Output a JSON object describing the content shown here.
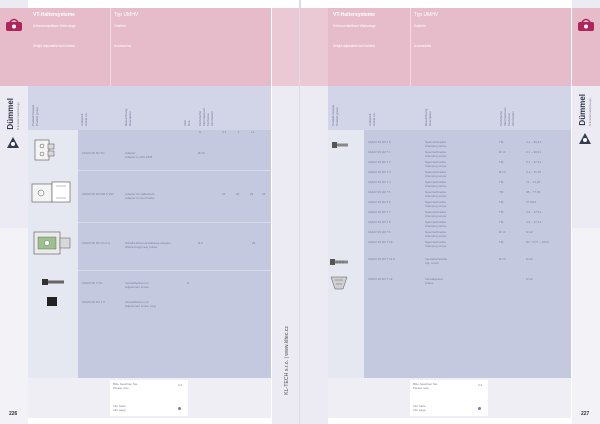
{
  "left_page": {
    "header": {
      "title": "VT-Haltersysteme",
      "subtitle_de": "Höhenverstellbare Werkzeuge",
      "subtitle_en": "Height adjustable tool holders",
      "type_title": "Typ UMHV",
      "type_sub1": "Zubehör",
      "type_sub2": "Accessories"
    },
    "columns": [
      "Produkt-Gruppe Product group",
      "Artikel-Nr. Article no.",
      "Bezeichnung Description",
      "Abm. Dim.",
      "Technische Informationen Technical information"
    ],
    "top_values": [
      "G",
      "d 1",
      "L",
      "L1"
    ],
    "rows": [
      {
        "article": "UMHV 06 D3 TG",
        "desc_de": "Adapter",
        "desc_en": "Adapter to DIN 1835",
        "dim": "Ø 16",
        "vals": [
          "",
          "",
          "",
          ""
        ]
      },
      {
        "article": "UMHV 06 D3 DM 6 VDI",
        "desc_de": "Adapter für Halterbohr.",
        "desc_en": "Adapter for tool holder",
        "dim": "",
        "vals": [
          "22",
          "20",
          "29",
          "24"
        ]
      },
      {
        "article": "UMHV 06 D3 TG 0.0",
        "desc_de": "Schaft-Höhenverstellungs-Adapter",
        "desc_en": "Shank-height adj. holder",
        "dim": "Ø 2",
        "vals": [
          "",
          "",
          "",
          "24"
        ]
      },
      {
        "article": "UMHV 06 3 TG",
        "desc_de": "Verstellbolzen mit",
        "desc_en": "Adjustment screw",
        "dim": "8",
        "vals": [
          "",
          "",
          "",
          ""
        ]
      },
      {
        "article": "UMHV 06 D3 T 0",
        "desc_de": "Verstellbolzen mit",
        "desc_en": "Adjustment screw, long",
        "dim": "",
        "vals": [
          "",
          "",
          "",
          ""
        ]
      }
    ],
    "footer": {
      "note_de": "Bitte beachten Sie",
      "note_en": "Please note",
      "note_num": "2.2",
      "info_de": "Info Seite",
      "info_en": "Info page"
    },
    "page_number": "226",
    "brand": "Dümmel",
    "brand_sub": "Präzisionswerkzeuge"
  },
  "right_page": {
    "header": {
      "title": "VT-Haltersysteme",
      "subtitle_de": "Höhenverstellbare Werkzeuge",
      "subtitle_en": "Height adjustable tool holders",
      "type_title": "Typ UMHV",
      "type_sub1": "Zubehör",
      "type_sub2": "Accessories"
    },
    "url": "KL-TECH s.r.o. | www.kltec.cz",
    "rows": [
      {
        "article": "UMHV 06 D3 T 0",
        "desc_de": "Spannschraube",
        "desc_en": "Clamping screw",
        "code": "TM",
        "range": "2,1 – 39,9 L"
      },
      {
        "article": "UMHV 06 D3 T 1",
        "desc_de": "Spannschraube",
        "desc_en": "Clamping screw",
        "code": "Ø 13",
        "range": "2,1 – 39,9 L"
      },
      {
        "article": "UMHV 06 D3 T 2",
        "desc_de": "Spannschraube",
        "desc_en": "Clamping screw",
        "code": "TM",
        "range": "5,1 – 37,9 L"
      },
      {
        "article": "UMHV 06 D3 T 3",
        "desc_de": "Spannschraube",
        "desc_en": "Clamping screw",
        "code": "Ø 13",
        "range": "5,1 – 71,75"
      },
      {
        "article": "UMHV 06 D3 T 4",
        "desc_de": "Spannschraube",
        "desc_en": "Clamping screw",
        "code": "TM",
        "range": "72 – 72,25"
      },
      {
        "article": "UMHV 06 D3 T 5",
        "desc_de": "Spannschraube",
        "desc_en": "Clamping screw",
        "code": "TM",
        "range": "38 – 77,45"
      },
      {
        "article": "UMHV 06 D3 T 6",
        "desc_de": "Spannschraube",
        "desc_en": "Clamping screw",
        "code": "TM",
        "range": "27 M10"
      },
      {
        "article": "UMHV 06 D3 T 7",
        "desc_de": "Spannschraube",
        "desc_en": "Clamping screw",
        "code": "TM",
        "range": "2,9 – 17,6 L"
      },
      {
        "article": "UMHV 06 D3 T 8",
        "desc_de": "Spannschraube",
        "desc_en": "Clamping screw",
        "code": "TM",
        "range": "4,5 – 17,6 L"
      },
      {
        "article": "UMHV 06 D3 T 9",
        "desc_de": "Spannschraube",
        "desc_en": "Clamping screw",
        "code": "Ø 13",
        "range": "M 12"
      },
      {
        "article": "UMHV 06 D3 T 10",
        "desc_de": "Spannschraube",
        "desc_en": "Clamping screw",
        "code": "TM",
        "range": "30 ° 27,5 – 130,2"
      },
      {
        "article": "UMHV 06 D3 T 11 D",
        "desc_de": "Verstellschraube",
        "desc_en": "Adj. screw",
        "code": "Ø 13",
        "range": "M 12"
      },
      {
        "article": "UMHV 06 D3 T 12",
        "desc_de": "Verstellpratze",
        "desc_en": "Clamp",
        "code": "",
        "range": "M 12"
      }
    ],
    "footer": {
      "note_de": "Bitte beachten Sie",
      "note_en": "Please note",
      "note_num": "2.2",
      "info_de": "Info Seite",
      "info_en": "Info page"
    },
    "page_number": "227",
    "brand": "Dümmel",
    "brand_sub": "Präzisionswerkzeuge"
  },
  "colors": {
    "header_pink": "#e6bccb",
    "table_lavender": "#c5c9e0",
    "logo_magenta": "#b0245c",
    "logo_navy": "#343a52"
  }
}
